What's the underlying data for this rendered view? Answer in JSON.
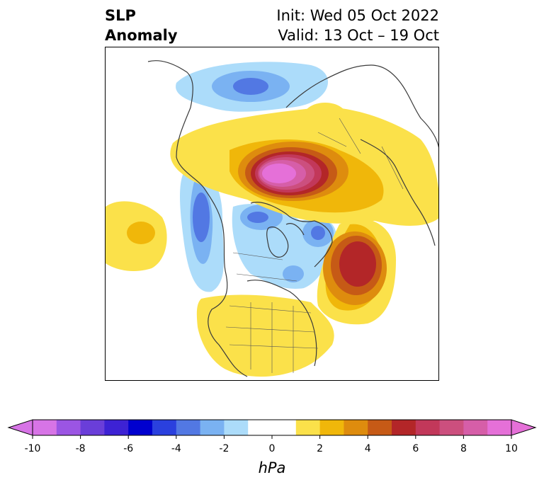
{
  "header": {
    "left_line1": "SLP",
    "left_line2": "Anomaly",
    "right_line1": "Init: Wed 05 Oct 2022",
    "right_line2": "Valid: 13 Oct – 19 Oct"
  },
  "colorbar": {
    "unit": "hPa",
    "ticks": [
      "-10",
      "-8",
      "-6",
      "-4",
      "-2",
      "0",
      "2",
      "4",
      "6",
      "8",
      "10"
    ],
    "bins": [
      {
        "low": -10,
        "high": -9,
        "color": "#d774e6"
      },
      {
        "low": -9,
        "high": -8,
        "color": "#9b55e3"
      },
      {
        "low": -8,
        "high": -7,
        "color": "#6a3ed9"
      },
      {
        "low": -7,
        "high": -6,
        "color": "#3d22d4"
      },
      {
        "low": -6,
        "high": -5,
        "color": "#0000cf"
      },
      {
        "low": -5,
        "high": -4,
        "color": "#2a40de"
      },
      {
        "low": -4,
        "high": -3,
        "color": "#5278e3"
      },
      {
        "low": -3,
        "high": -2,
        "color": "#7ab2f2"
      },
      {
        "low": -2,
        "high": -1,
        "color": "#acdcfa"
      },
      {
        "low": -1,
        "high": 1,
        "color": "#ffffff"
      },
      {
        "low": 1,
        "high": 2,
        "color": "#fbe14a"
      },
      {
        "low": 2,
        "high": 3,
        "color": "#f0b70a"
      },
      {
        "low": 3,
        "high": 4,
        "color": "#de8c0e"
      },
      {
        "low": 4,
        "high": 5,
        "color": "#c65a16"
      },
      {
        "low": 5,
        "high": 6,
        "color": "#b32628"
      },
      {
        "low": 6,
        "high": 7,
        "color": "#c2385a"
      },
      {
        "low": 7,
        "high": 8,
        "color": "#cc4f7e"
      },
      {
        "low": 8,
        "high": 9,
        "color": "#d65ea8"
      },
      {
        "low": 9,
        "high": 10,
        "color": "#e570d8"
      }
    ],
    "extend_low_color": "#d774e6",
    "extend_high_color": "#e570d8"
  },
  "map": {
    "projection": "north polar stereographic",
    "features": [
      "positive anomaly max over north-central Siberia / Arctic (~9-10 hPa)",
      "positive anomaly max over northwest Atlantic / Greenland south (~6 hPa)",
      "positive anomaly over contiguous United States (~1-2 hPa)",
      "positive anomaly over north Pacific (~2-3 hPa)",
      "negative anomaly over Scandinavia / northern Europe (~-4 hPa)",
      "negative anomaly over Gulf of Alaska / Bering (~-4 hPa)",
      "negative anomaly over Canadian Arctic (~-3 hPa)"
    ]
  }
}
